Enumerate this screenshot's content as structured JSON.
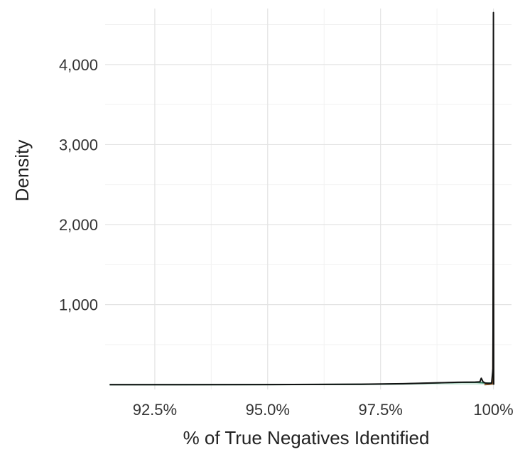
{
  "chart_data": {
    "type": "area",
    "title": "",
    "xlabel": "% of True Negatives Identified",
    "ylabel": "Density",
    "xlim": [
      91.4,
      100.4
    ],
    "ylim": [
      -60,
      4700
    ],
    "x_ticks": [
      92.5,
      95.0,
      97.5,
      100.0
    ],
    "x_tick_labels": [
      "92.5%",
      "95.0%",
      "97.5%",
      "100%"
    ],
    "y_ticks": [
      1000,
      2000,
      3000,
      4000
    ],
    "y_tick_labels": [
      "1,000",
      "2,000",
      "3,000",
      "4,000"
    ],
    "x_minor_ticks": [
      93.75,
      96.25,
      98.75
    ],
    "y_minor_ticks": [
      500,
      1500,
      2500,
      3500,
      4500
    ],
    "grid": true,
    "legend": "none",
    "series": [
      {
        "color": "#2e7d5b",
        "fill": "#a8d5c0",
        "points": [
          [
            91.5,
            0
          ],
          [
            95.0,
            1
          ],
          [
            97.0,
            3
          ],
          [
            98.0,
            10
          ],
          [
            98.5,
            18
          ],
          [
            99.0,
            25
          ],
          [
            99.3,
            29
          ],
          [
            99.6,
            30
          ],
          [
            99.75,
            24
          ],
          [
            99.85,
            20
          ],
          [
            99.95,
            20
          ],
          [
            100.0,
            5
          ]
        ]
      },
      {
        "color": "#8a5a2b",
        "fill": "#e6b98c",
        "points": [
          [
            99.8,
            0
          ],
          [
            99.9,
            3
          ],
          [
            99.95,
            6
          ],
          [
            99.985,
            12
          ],
          [
            100.0,
            1680
          ],
          [
            100.005,
            0
          ]
        ]
      },
      {
        "color": "#111111",
        "fill": "none",
        "points": [
          [
            91.5,
            0
          ],
          [
            95.0,
            1
          ],
          [
            97.0,
            5
          ],
          [
            98.0,
            12
          ],
          [
            98.7,
            22
          ],
          [
            99.2,
            30
          ],
          [
            99.6,
            32
          ],
          [
            99.7,
            35
          ],
          [
            99.73,
            80
          ],
          [
            99.77,
            36
          ],
          [
            99.82,
            20
          ],
          [
            99.9,
            15
          ],
          [
            99.96,
            20
          ],
          [
            99.99,
            200
          ],
          [
            100.0,
            4650
          ],
          [
            100.005,
            0
          ]
        ]
      }
    ]
  }
}
